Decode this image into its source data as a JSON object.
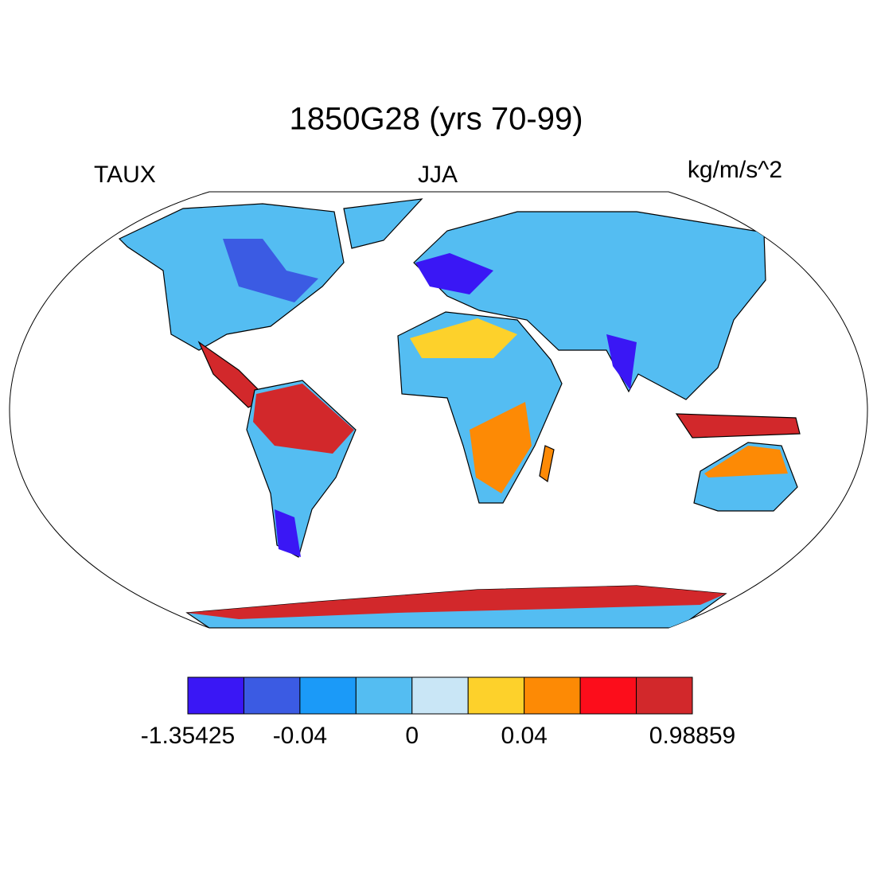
{
  "chart_data": {
    "type": "map",
    "title": "1850G28 (yrs 70-99)",
    "left_label": "TAUX",
    "center_label": "JJA",
    "right_label": "kg/m/s^2",
    "colorbar": {
      "colors": [
        "#3a17f5",
        "#3b5be3",
        "#1b9af8",
        "#54bdf2",
        "#c9e6f6",
        "#fdd12b",
        "#fd8a05",
        "#fc0d1b",
        "#d2282b"
      ],
      "levels": [
        -1.35425,
        null,
        -0.04,
        null,
        0,
        null,
        0.04,
        null,
        null,
        0.98859
      ]
    }
  }
}
